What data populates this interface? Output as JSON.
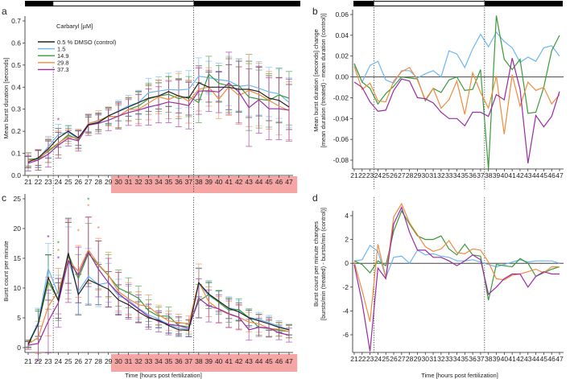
{
  "colors": {
    "control": "#222222",
    "c1_5": "#6cb6f2",
    "c14_9": "#3a9b3a",
    "c29_8": "#f08c3c",
    "c37_3": "#9b2aa3",
    "highlight_band": "#f6a5a5",
    "light_bar_dark": "#000000",
    "light_bar_light": "#ffffff"
  },
  "legend": {
    "title": "Carbaryl [µM]",
    "items": [
      "0.5 % DMSO (control)",
      "1.5",
      "14.9",
      "29.8",
      "37.3"
    ]
  },
  "shared_xlabel": "Time [hours post fertilization]",
  "chart_data": [
    {
      "panel": "a",
      "type": "line",
      "ylabel": "Mean burst duration [seconds]",
      "x": [
        "21",
        "22",
        "23",
        "24",
        "25",
        "26",
        "27",
        "28",
        "29",
        "30",
        "31",
        "32",
        "33",
        "34",
        "35",
        "36",
        "37",
        "38",
        "39",
        "40",
        "41",
        "42",
        "43",
        "44",
        "45",
        "46",
        "47"
      ],
      "ylim": [
        0,
        0.7
      ],
      "yticks": [
        "0.0",
        "0.1",
        "0.2",
        "0.3",
        "0.4",
        "0.5",
        "0.6",
        "0.7"
      ],
      "highlight_hours": [
        30,
        47
      ],
      "dashed_lines_at_hours": [
        23.5,
        37.5
      ],
      "series": [
        {
          "name": "0.5 % DMSO (control)",
          "values": [
            0.06,
            0.08,
            0.12,
            0.17,
            0.2,
            0.17,
            0.23,
            0.24,
            0.27,
            0.29,
            0.31,
            0.33,
            0.35,
            0.36,
            0.38,
            0.36,
            0.35,
            0.42,
            0.4,
            0.4,
            0.4,
            0.39,
            0.39,
            0.38,
            0.35,
            0.34,
            0.31
          ]
        },
        {
          "name": "1.5",
          "values": [
            0.07,
            0.075,
            0.13,
            0.185,
            0.197,
            0.164,
            0.236,
            0.246,
            0.269,
            0.293,
            0.316,
            0.33,
            0.375,
            0.382,
            0.389,
            0.387,
            0.391,
            0.449,
            0.443,
            0.434,
            0.428,
            0.404,
            0.409,
            0.395,
            0.378,
            0.37,
            0.33
          ]
        },
        {
          "name": "14.9",
          "values": [
            0.073,
            0.075,
            0.109,
            0.144,
            0.184,
            0.161,
            0.23,
            0.239,
            0.268,
            0.267,
            0.299,
            0.315,
            0.347,
            0.36,
            0.367,
            0.348,
            0.357,
            0.33,
            0.459,
            0.417,
            0.407,
            0.407,
            0.355,
            0.346,
            0.34,
            0.365,
            0.35
          ]
        },
        {
          "name": "29.8",
          "values": [
            0.07,
            0.068,
            0.114,
            0.147,
            0.176,
            0.166,
            0.235,
            0.249,
            0.267,
            0.268,
            0.299,
            0.3,
            0.328,
            0.356,
            0.344,
            0.364,
            0.335,
            0.39,
            0.401,
            0.345,
            0.402,
            0.362,
            0.385,
            0.367,
            0.34,
            0.314,
            0.293
          ]
        },
        {
          "name": "37.3",
          "values": [
            0.055,
            0.07,
            0.096,
            0.137,
            0.168,
            0.157,
            0.228,
            0.236,
            0.25,
            0.269,
            0.285,
            0.296,
            0.31,
            0.32,
            0.333,
            0.326,
            0.316,
            0.382,
            0.383,
            0.378,
            0.418,
            0.378,
            0.307,
            0.343,
            0.302,
            0.302,
            0.296
          ]
        }
      ],
      "error_approx": [
        0.03,
        0.04,
        0.05,
        0.05,
        0.03,
        0.04,
        0.04,
        0.04,
        0.04,
        0.05,
        0.05,
        0.06,
        0.07,
        0.07,
        0.08,
        0.09,
        0.09,
        0.09,
        0.08,
        0.08,
        0.12,
        0.12,
        0.15,
        0.13,
        0.12,
        0.12,
        0.12
      ],
      "significance_marks": [
        {
          "hour": 24,
          "series": 4,
          "value": 0.25,
          "label": "*"
        }
      ]
    },
    {
      "panel": "b",
      "type": "line",
      "ylabel": [
        "Mean burst duration [seconds] change",
        "[mean duration (treated) - mean duration (control)]"
      ],
      "x": [
        "21",
        "22",
        "23",
        "24",
        "25",
        "26",
        "27",
        "28",
        "29",
        "30",
        "31",
        "32",
        "33",
        "34",
        "35",
        "36",
        "37",
        "38",
        "39",
        "40",
        "41",
        "42",
        "43",
        "44",
        "45",
        "46",
        "47"
      ],
      "ylim": [
        -0.09,
        0.06
      ],
      "yticks": [
        "0.06",
        "0.04",
        "0.02",
        "0.00",
        "-0.02",
        "-0.04",
        "-0.06",
        "-0.08"
      ],
      "ytick_values": [
        0.06,
        0.04,
        0.02,
        0,
        -0.02,
        -0.04,
        -0.06,
        -0.08
      ],
      "dashed_lines_at_hours": [
        23.5,
        37.5
      ],
      "series": [
        {
          "name": "1.5",
          "values": [
            0.012,
            -0.005,
            0.011,
            0.015,
            -0.003,
            -0.006,
            0.006,
            0.006,
            -0.001,
            0.003,
            0.006,
            0.0,
            0.025,
            0.022,
            0.009,
            0.027,
            0.041,
            0.029,
            0.043,
            0.034,
            0.028,
            0.014,
            0.019,
            0.015,
            0.028,
            0.03,
            0.02
          ]
        },
        {
          "name": "14.9",
          "values": [
            0.013,
            -0.005,
            -0.011,
            -0.026,
            -0.016,
            -0.009,
            0.0,
            -0.001,
            -0.002,
            -0.023,
            -0.011,
            -0.015,
            -0.003,
            0.0,
            -0.013,
            -0.012,
            0.007,
            -0.09,
            0.059,
            0.017,
            0.007,
            0.017,
            -0.035,
            -0.034,
            -0.01,
            0.025,
            0.04
          ]
        },
        {
          "name": "29.8",
          "values": [
            0.01,
            -0.012,
            -0.006,
            -0.023,
            -0.024,
            -0.004,
            0.005,
            0.009,
            -0.003,
            -0.022,
            -0.011,
            -0.03,
            -0.022,
            -0.004,
            -0.036,
            0.004,
            -0.015,
            -0.03,
            0.001,
            -0.055,
            0.002,
            -0.028,
            -0.005,
            -0.013,
            -0.01,
            -0.026,
            -0.017
          ]
        },
        {
          "name": "37.3",
          "values": [
            -0.005,
            -0.01,
            -0.024,
            -0.033,
            -0.032,
            -0.013,
            -0.002,
            -0.004,
            -0.02,
            -0.021,
            -0.025,
            -0.034,
            -0.04,
            -0.04,
            -0.047,
            -0.034,
            -0.034,
            -0.038,
            -0.017,
            -0.022,
            0.018,
            -0.012,
            -0.083,
            -0.037,
            -0.048,
            -0.038,
            -0.014
          ]
        }
      ]
    },
    {
      "panel": "c",
      "type": "line",
      "ylabel": "Burst count per minute",
      "xlabel": "Time [hours post fertilization]",
      "x": [
        "21",
        "22",
        "23",
        "24",
        "25",
        "26",
        "27",
        "28",
        "29",
        "30",
        "31",
        "32",
        "33",
        "34",
        "35",
        "36",
        "37",
        "38",
        "39",
        "40",
        "41",
        "42",
        "43",
        "44",
        "45",
        "46",
        "47"
      ],
      "ylim": [
        -1,
        25
      ],
      "yticks": [
        "0",
        "5",
        "10",
        "15",
        "20",
        "25"
      ],
      "ytick_values": [
        0,
        5,
        10,
        15,
        20,
        25
      ],
      "highlight_hours": [
        30,
        47
      ],
      "dashed_lines_at_hours": [
        23.5,
        37.5
      ],
      "series": [
        {
          "name": "0.5 % DMSO (control)",
          "values": [
            0.5,
            4,
            11.8,
            7.9,
            15.9,
            8.9,
            11.4,
            10.6,
            9.8,
            8,
            7.2,
            6,
            5,
            4.6,
            3.7,
            3,
            2.9,
            10.9,
            9,
            7.8,
            6.6,
            6,
            5,
            4.5,
            4,
            3.4,
            3
          ]
        },
        {
          "name": "1.5",
          "values": [
            0.7,
            4.3,
            13.3,
            8.9,
            14.7,
            9.4,
            12.0,
            10.6,
            10.9,
            8.7,
            8.0,
            6.6,
            5.5,
            4.8,
            3.9,
            3.3,
            3.0,
            10.8,
            8.7,
            7.7,
            6.7,
            6.3,
            5.1,
            4.7,
            4.2,
            3.6,
            3.0
          ]
        },
        {
          "name": "14.9",
          "values": [
            0.7,
            3.9,
            11.0,
            8.1,
            15.7,
            11.6,
            15.8,
            13.9,
            12.1,
            10.0,
            9.2,
            8.3,
            6.2,
            5.3,
            5.3,
            3.7,
            3.5,
            7.8,
            8.9,
            7.6,
            6.3,
            6.4,
            5.0,
            3.4,
            3.2,
            2.9,
            2.7
          ]
        },
        {
          "name": "29.8",
          "values": [
            0.6,
            1.7,
            6.9,
            9.5,
            14.7,
            12.8,
            16.4,
            14.0,
            12.2,
            9.4,
            8.2,
            7.2,
            6.9,
            5.5,
            4.5,
            4.2,
            4.0,
            11.0,
            7.7,
            6.4,
            5.6,
            5.1,
            4.3,
            4.0,
            3.2,
            3.1,
            2.7
          ]
        },
        {
          "name": "37.3",
          "values": [
            0.4,
            0.7,
            4.4,
            7.5,
            14.6,
            12.2,
            16.1,
            13.2,
            10.9,
            9.1,
            7.7,
            6.5,
            5.2,
            4.4,
            3.9,
            3.7,
            3.2,
            8.3,
            7.0,
            6.5,
            5.7,
            5.1,
            3.0,
            3.4,
            3.3,
            2.5,
            2.1
          ]
        }
      ],
      "error_approx": [
        0.6,
        2.5,
        4.5,
        3.5,
        6,
        4,
        5,
        4,
        3.5,
        3,
        2.5,
        2,
        1.8,
        1.5,
        1.5,
        1.3,
        1.2,
        2.8,
        2.3,
        2,
        2,
        1.8,
        1.5,
        1.3,
        1.3,
        1,
        1
      ],
      "significance_marks": [
        {
          "hour": 23,
          "series": 4,
          "value": 18.5,
          "label": "*"
        },
        {
          "hour": 24,
          "series": 2,
          "value": 17.5,
          "label": "*"
        },
        {
          "hour": 24,
          "series": 3,
          "value": 16.2,
          "label": "*"
        },
        {
          "hour": 24,
          "series": 4,
          "value": 14.9,
          "label": "*"
        },
        {
          "hour": 26,
          "series": 3,
          "value": 19.5,
          "label": "*"
        },
        {
          "hour": 27,
          "series": 2,
          "value": 24.8,
          "label": "*"
        },
        {
          "hour": 27,
          "series": 3,
          "value": 23.7,
          "label": "*"
        },
        {
          "hour": 28,
          "series": 3,
          "value": 20.0,
          "label": "*"
        }
      ]
    },
    {
      "panel": "d",
      "type": "line",
      "ylabel": [
        "Burst count per minute changes",
        "[bursts/min (treated) - bursts/min (control)]"
      ],
      "xlabel": "Time [hours post fertilization]",
      "x": [
        "21",
        "22",
        "23",
        "24",
        "25",
        "26",
        "27",
        "28",
        "29",
        "30",
        "31",
        "32",
        "33",
        "34",
        "35",
        "36",
        "37",
        "38",
        "39",
        "40",
        "41",
        "42",
        "43",
        "44",
        "45",
        "46",
        "47"
      ],
      "ylim": [
        -7.5,
        5.5
      ],
      "yticks": [
        "4",
        "2",
        "0",
        "-2",
        "-4",
        "-6"
      ],
      "ytick_values": [
        4,
        2,
        0,
        -2,
        -4,
        -6
      ],
      "dashed_lines_at_hours": [
        23.5,
        37.5
      ],
      "series": [
        {
          "name": "1.5",
          "values": [
            0.2,
            0.3,
            1.5,
            1,
            -1.2,
            0.5,
            0.6,
            0,
            1.1,
            0.7,
            0.8,
            0.6,
            0.5,
            0.2,
            0.2,
            0.3,
            0.1,
            -0.1,
            -0.3,
            -0.1,
            0.1,
            0.3,
            0.1,
            0.2,
            0.2,
            0.2,
            0.0
          ]
        },
        {
          "name": "14.9",
          "values": [
            0.2,
            -0.1,
            -0.8,
            0.2,
            -0.2,
            2.7,
            4.4,
            3.3,
            2.3,
            2.0,
            2.0,
            2.3,
            1.2,
            0.7,
            1.6,
            0.7,
            0.6,
            -3.1,
            -0.1,
            -0.2,
            -0.3,
            0.4,
            0,
            -1.1,
            -0.8,
            -0.5,
            -0.3
          ]
        },
        {
          "name": "29.8",
          "values": [
            0.1,
            -2.3,
            -4.9,
            1.6,
            -1.2,
            3.9,
            5.0,
            3.4,
            2.4,
            1.4,
            1.0,
            1.2,
            1.9,
            0.9,
            0.8,
            1.2,
            1.1,
            0.1,
            -1.3,
            -1.4,
            -1.0,
            -0.9,
            -0.7,
            -0.5,
            -0.8,
            -0.3,
            -0.3
          ]
        },
        {
          "name": "37.3",
          "values": [
            -0.1,
            -3.3,
            -7.4,
            -0.4,
            -1.3,
            3.3,
            4.7,
            2.6,
            1.1,
            1.1,
            0.5,
            0.5,
            0.2,
            -0.2,
            0.2,
            0.7,
            0.3,
            -2.6,
            -2.0,
            -1.3,
            -0.9,
            -0.9,
            -2.0,
            -1.1,
            -0.7,
            -0.9,
            -0.9
          ]
        }
      ]
    }
  ],
  "panel_letters": [
    "a",
    "b",
    "c",
    "d"
  ]
}
